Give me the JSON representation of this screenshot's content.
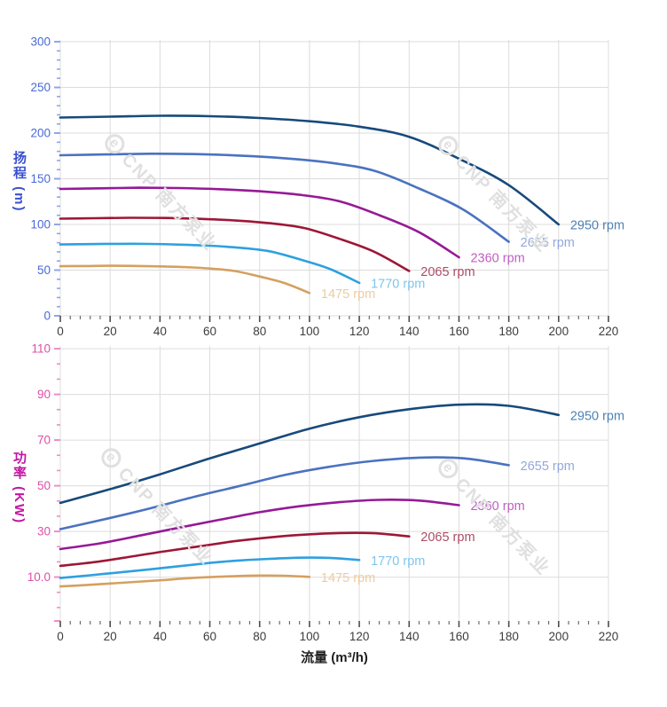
{
  "watermark": {
    "logo_letter": "e",
    "text": "CNP 南方泵业",
    "color": "#e0e0e0"
  },
  "chart_data": [
    {
      "type": "line",
      "title": "",
      "ylabel": "扬程 (m)",
      "xlabel": "",
      "xlim": [
        0,
        220
      ],
      "ylim": [
        0,
        302
      ],
      "x_ticks": [
        0,
        20,
        40,
        60,
        80,
        100,
        120,
        140,
        160,
        180,
        200,
        220
      ],
      "x_minor_divisions": 5,
      "y_ticks": [
        0,
        50,
        100,
        150,
        200,
        250,
        300
      ],
      "y_tick_labels": [
        "0",
        "50",
        "100",
        "150",
        "200",
        "250",
        "300"
      ],
      "y_minor_divisions": 5,
      "y_axis_end_tick": false,
      "grid": true,
      "legend_position": "curve-ends",
      "style": {
        "grid_color": "#dcdcdc",
        "y_title_color": "#3a50d0",
        "y_tick_label_color": "#4a68d8",
        "y_tick_color": "#90a5e8",
        "x_tick_color": "#4c4c4c",
        "x_tick_label_color": "#3c3c3c"
      },
      "series": [
        {
          "name": "2950 rpm",
          "color": "#174a7c",
          "label_color": "#4e81b4",
          "points": [
            [
              0,
              217
            ],
            [
              20,
              218
            ],
            [
              40,
              219
            ],
            [
              60,
              218.5
            ],
            [
              80,
              216.5
            ],
            [
              100,
              213
            ],
            [
              120,
              207
            ],
            [
              140,
              196
            ],
            [
              160,
              172
            ],
            [
              180,
              143
            ],
            [
              200,
              100
            ]
          ]
        },
        {
          "name": "2655 rpm",
          "color": "#4a72c0",
          "label_color": "#92a8db",
          "points": [
            [
              0,
              175.8
            ],
            [
              18,
              176.6
            ],
            [
              36,
              177.4
            ],
            [
              54,
              177
            ],
            [
              72,
              175.4
            ],
            [
              90,
              172.5
            ],
            [
              108,
              167.7
            ],
            [
              126,
              158.8
            ],
            [
              144,
              139.3
            ],
            [
              162,
              115.8
            ],
            [
              180,
              81
            ]
          ]
        },
        {
          "name": "2360 rpm",
          "color": "#951a96",
          "label_color": "#c05fc2",
          "points": [
            [
              0,
              138.9
            ],
            [
              16,
              139.5
            ],
            [
              32,
              140.2
            ],
            [
              48,
              139.8
            ],
            [
              64,
              138.6
            ],
            [
              80,
              136.3
            ],
            [
              96,
              132.5
            ],
            [
              112,
              125.4
            ],
            [
              128,
              110.1
            ],
            [
              144,
              91.5
            ],
            [
              160,
              64
            ]
          ]
        },
        {
          "name": "2065 rpm",
          "color": "#9d1737",
          "label_color": "#ab4d66",
          "points": [
            [
              0,
              106.3
            ],
            [
              14,
              106.8
            ],
            [
              28,
              107.3
            ],
            [
              42,
              107.1
            ],
            [
              56,
              106.1
            ],
            [
              70,
              104.4
            ],
            [
              84,
              101.4
            ],
            [
              98,
              96
            ],
            [
              112,
              84.3
            ],
            [
              126,
              70.1
            ],
            [
              140,
              49
            ]
          ]
        },
        {
          "name": "1770 rpm",
          "color": "#2ea0e0",
          "label_color": "#7fc5ec",
          "points": [
            [
              0,
              78.1
            ],
            [
              12,
              78.5
            ],
            [
              24,
              78.8
            ],
            [
              36,
              78.7
            ],
            [
              48,
              77.9
            ],
            [
              60,
              76.7
            ],
            [
              72,
              74.5
            ],
            [
              84,
              70.6
            ],
            [
              96,
              61.9
            ],
            [
              108,
              51.5
            ],
            [
              120,
              36
            ]
          ]
        },
        {
          "name": "1475 rpm",
          "color": "#d5a060",
          "label_color": "#eccca0",
          "points": [
            [
              0,
              54.3
            ],
            [
              10,
              54.5
            ],
            [
              20,
              54.8
            ],
            [
              30,
              54.6
            ],
            [
              40,
              54.1
            ],
            [
              50,
              53.3
            ],
            [
              60,
              51.8
            ],
            [
              70,
              49
            ],
            [
              80,
              43
            ],
            [
              90,
              35.8
            ],
            [
              100,
              25
            ]
          ]
        }
      ]
    },
    {
      "type": "line",
      "title": "",
      "ylabel": "功率 (KW)",
      "xlabel": "流量 (m³/h)",
      "xlim": [
        0,
        220
      ],
      "ylim": [
        -9.2,
        111.2
      ],
      "x_ticks": [
        0,
        20,
        40,
        60,
        80,
        100,
        120,
        140,
        160,
        180,
        200,
        220
      ],
      "x_minor_divisions": 5,
      "y_ticks": [
        10,
        30,
        50,
        70,
        90,
        110
      ],
      "y_tick_labels": [
        "10.0",
        "30",
        "50",
        "70",
        "90",
        "110"
      ],
      "y_minor_divisions": 3,
      "y_axis_end_tick": true,
      "grid": true,
      "legend_position": "curve-ends",
      "style": {
        "grid_color": "#dcdcdc",
        "y_title_color": "#c214a2",
        "y_tick_label_color": "#dd4fa8",
        "y_tick_color": "#f08cc8",
        "x_tick_color": "#4c4c4c",
        "x_tick_label_color": "#3c3c3c"
      },
      "series": [
        {
          "name": "2950 rpm",
          "color": "#174a7c",
          "label_color": "#4e81b4",
          "points": [
            [
              0,
              42.5
            ],
            [
              20,
              48.5
            ],
            [
              40,
              55
            ],
            [
              60,
              62
            ],
            [
              80,
              68.5
            ],
            [
              100,
              75
            ],
            [
              120,
              80
            ],
            [
              140,
              83.5
            ],
            [
              160,
              85.5
            ],
            [
              180,
              85
            ],
            [
              200,
              81
            ]
          ]
        },
        {
          "name": "2655 rpm",
          "color": "#4a72c0",
          "label_color": "#92a8db",
          "points": [
            [
              0,
              31
            ],
            [
              18,
              35.4
            ],
            [
              36,
              40.1
            ],
            [
              54,
              45.2
            ],
            [
              72,
              49.9
            ],
            [
              90,
              54.7
            ],
            [
              108,
              58.3
            ],
            [
              126,
              60.9
            ],
            [
              144,
              62.3
            ],
            [
              162,
              62
            ],
            [
              180,
              59
            ]
          ]
        },
        {
          "name": "2360 rpm",
          "color": "#951a96",
          "label_color": "#c05fc2",
          "points": [
            [
              0,
              22.3
            ],
            [
              16,
              24.8
            ],
            [
              32,
              28.2
            ],
            [
              48,
              31.7
            ],
            [
              64,
              35.1
            ],
            [
              80,
              38.4
            ],
            [
              96,
              41
            ],
            [
              112,
              42.8
            ],
            [
              128,
              43.8
            ],
            [
              144,
              43.5
            ],
            [
              160,
              41.5
            ]
          ]
        },
        {
          "name": "2065 rpm",
          "color": "#9d1737",
          "label_color": "#ab4d66",
          "points": [
            [
              0,
              14.9
            ],
            [
              14,
              16.6
            ],
            [
              28,
              18.9
            ],
            [
              42,
              21.3
            ],
            [
              56,
              23.5
            ],
            [
              70,
              25.7
            ],
            [
              84,
              27.4
            ],
            [
              98,
              28.6
            ],
            [
              112,
              29.3
            ],
            [
              126,
              29.2
            ],
            [
              140,
              27.8
            ]
          ]
        },
        {
          "name": "1770 rpm",
          "color": "#2ea0e0",
          "label_color": "#7fc5ec",
          "points": [
            [
              0,
              9.6
            ],
            [
              12,
              10.8
            ],
            [
              24,
              12.1
            ],
            [
              36,
              13.4
            ],
            [
              48,
              14.8
            ],
            [
              60,
              16.2
            ],
            [
              72,
              17.3
            ],
            [
              84,
              18
            ],
            [
              96,
              18.5
            ],
            [
              108,
              18.4
            ],
            [
              120,
              17.5
            ]
          ]
        },
        {
          "name": "1475 rpm",
          "color": "#d5a060",
          "label_color": "#eccca0",
          "points": [
            [
              0,
              5.9
            ],
            [
              10,
              6.5
            ],
            [
              20,
              7.2
            ],
            [
              30,
              7.9
            ],
            [
              40,
              8.6
            ],
            [
              50,
              9.4
            ],
            [
              60,
              10
            ],
            [
              70,
              10.4
            ],
            [
              80,
              10.7
            ],
            [
              90,
              10.6
            ],
            [
              100,
              10.1
            ]
          ]
        }
      ]
    }
  ]
}
